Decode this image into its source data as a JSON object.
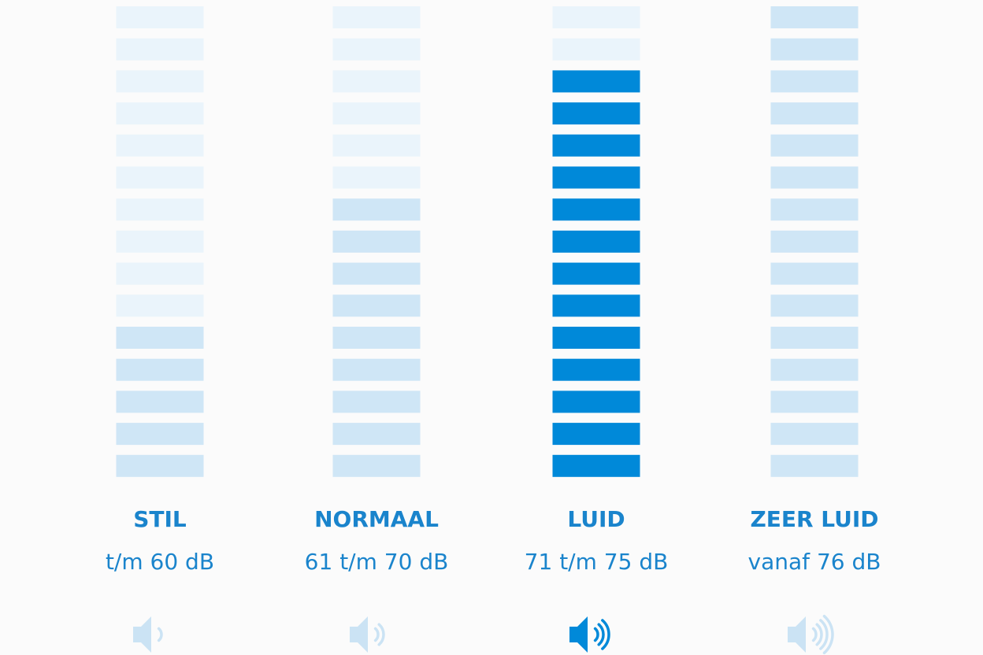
{
  "segments": 15,
  "columns": [
    {
      "title": "STIL",
      "range": "t/m 60 dB",
      "level": 5,
      "waves": 1,
      "active": false
    },
    {
      "title": "NORMAAL",
      "range": "61 t/m 70 dB",
      "level": 9,
      "waves": 2,
      "active": false
    },
    {
      "title": "LUID",
      "range": "71 t/m 75 dB",
      "level": 13,
      "waves": 3,
      "active": true
    },
    {
      "title": "ZEER LUID",
      "range": "vanaf 76 dB",
      "level": 15,
      "waves": 4,
      "active": false
    }
  ]
}
